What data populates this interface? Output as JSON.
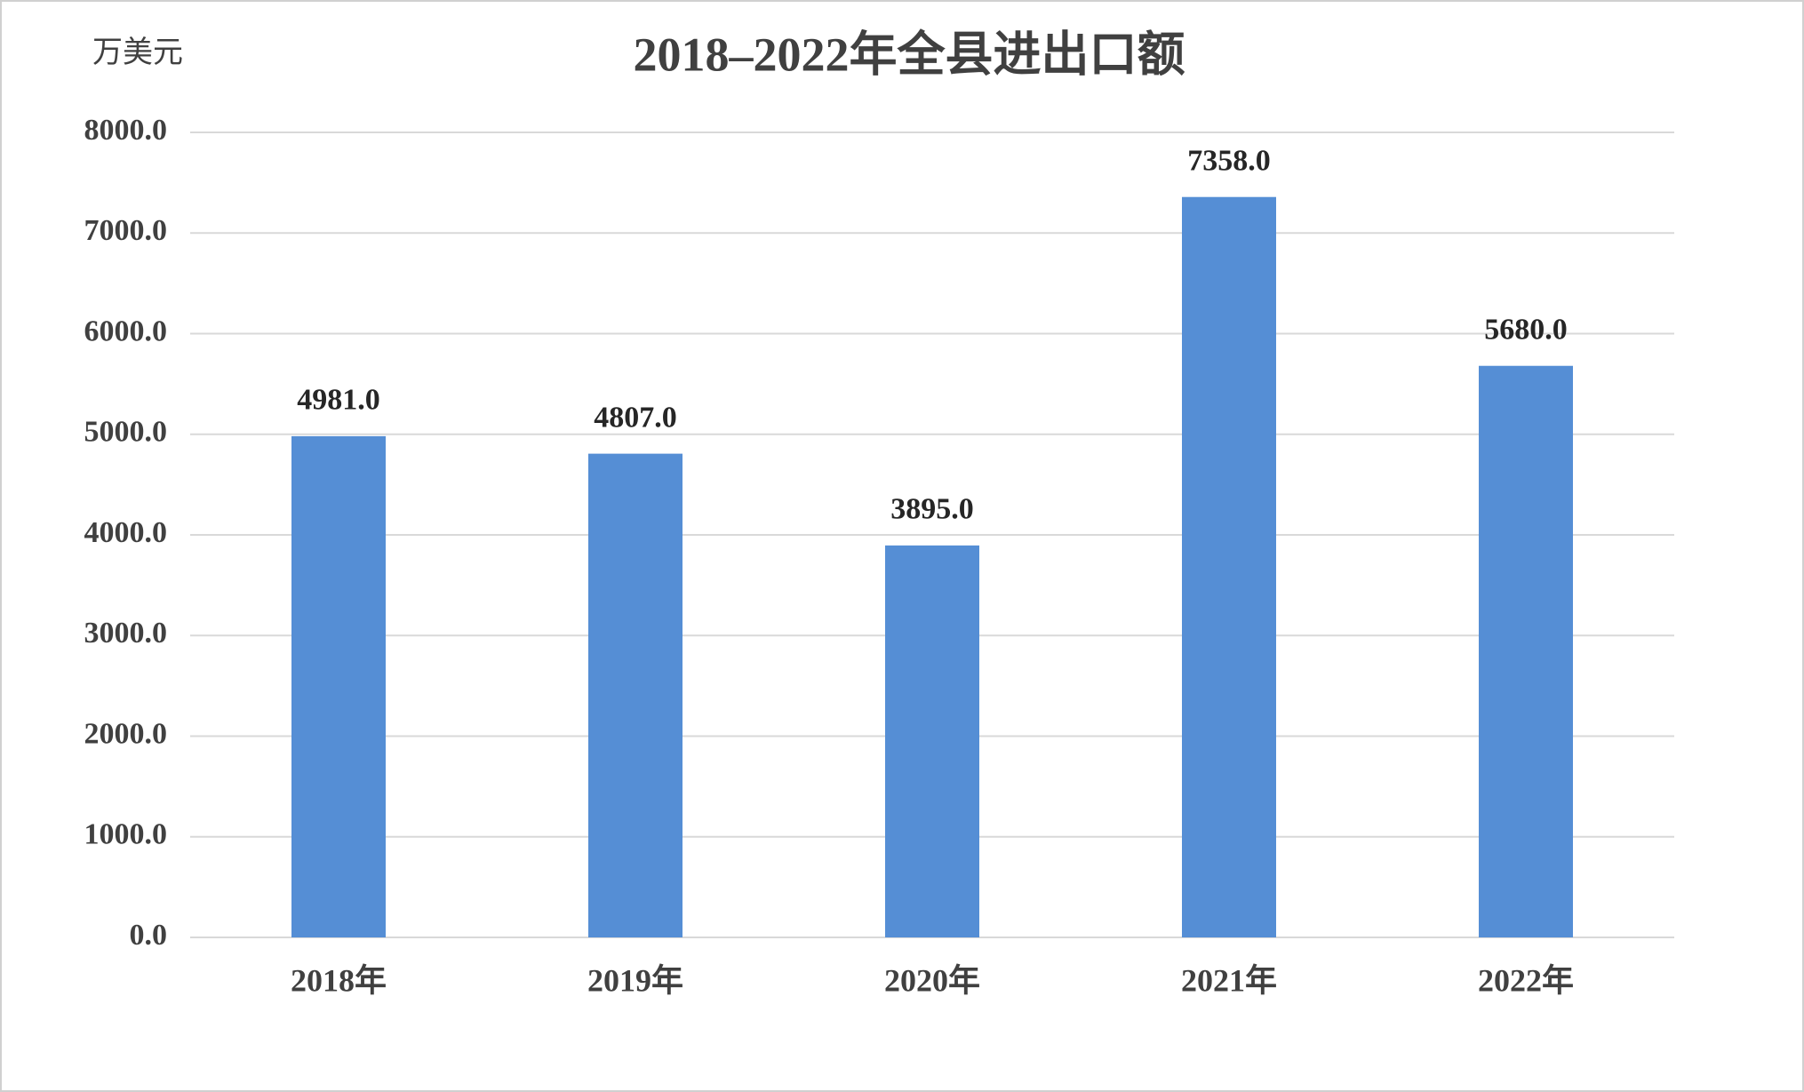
{
  "chart_data": {
    "type": "bar",
    "title": "2018–2022年全县进出口额",
    "ylabel": "万美元",
    "categories": [
      "2018年",
      "2019年",
      "2020年",
      "2021年",
      "2022年"
    ],
    "values": [
      4981,
      4807,
      3895,
      7358,
      5680
    ],
    "value_labels": [
      "4981.0",
      "4807.0",
      "3895.0",
      "7358.0",
      "5680.0"
    ],
    "color": "#558ed5",
    "ylim": [
      0,
      8000
    ],
    "yticks": [
      {
        "value": 0,
        "label": "0.0"
      },
      {
        "value": 1000,
        "label": "1000.0"
      },
      {
        "value": 2000,
        "label": "2000.0"
      },
      {
        "value": 3000,
        "label": "3000.0"
      },
      {
        "value": 4000,
        "label": "4000.0"
      },
      {
        "value": 5000,
        "label": "5000.0"
      },
      {
        "value": 6000,
        "label": "6000.0"
      },
      {
        "value": 7000,
        "label": "7000.0"
      },
      {
        "value": 8000,
        "label": "8000.0"
      }
    ],
    "grid": true
  }
}
